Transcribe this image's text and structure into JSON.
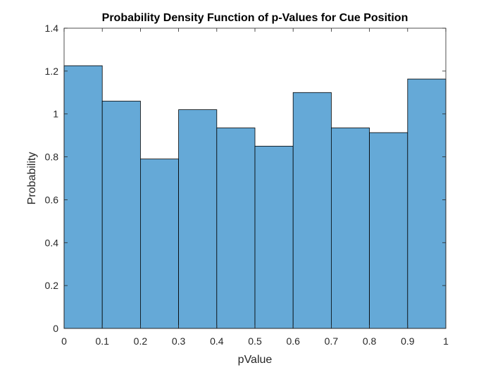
{
  "chart_data": {
    "type": "bar",
    "title": "Probability Density Function of p-Values for Cue Position",
    "xlabel": "pValue",
    "ylabel": "Probability",
    "bin_edges": [
      0,
      0.1,
      0.2,
      0.3,
      0.4,
      0.5,
      0.6,
      0.7,
      0.8,
      0.9,
      1
    ],
    "values": [
      1.225,
      1.06,
      0.79,
      1.02,
      0.935,
      0.85,
      1.1,
      0.935,
      0.913,
      1.163
    ],
    "xlim": [
      0,
      1
    ],
    "ylim": [
      0,
      1.4
    ],
    "xticks": [
      "0",
      "0.1",
      "0.2",
      "0.3",
      "0.4",
      "0.5",
      "0.6",
      "0.7",
      "0.8",
      "0.9",
      "1"
    ],
    "yticks": [
      "0",
      "0.2",
      "0.4",
      "0.6",
      "0.8",
      "1",
      "1.2",
      "1.4"
    ],
    "grid": false,
    "bar_color": "#65A9D7",
    "edge_color": "#000000"
  }
}
